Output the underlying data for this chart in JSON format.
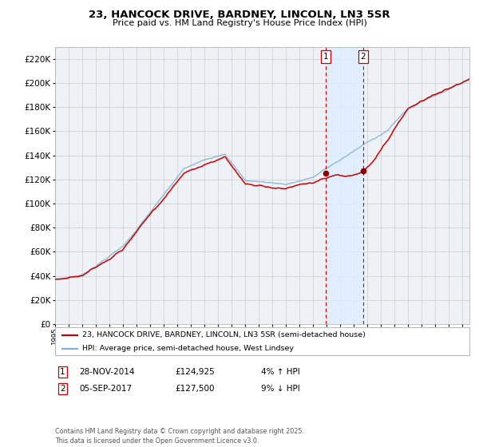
{
  "title": "23, HANCOCK DRIVE, BARDNEY, LINCOLN, LN3 5SR",
  "subtitle": "Price paid vs. HM Land Registry's House Price Index (HPI)",
  "ylim": [
    0,
    230000
  ],
  "yticks": [
    0,
    20000,
    40000,
    60000,
    80000,
    100000,
    120000,
    140000,
    160000,
    180000,
    200000,
    220000
  ],
  "sale1_date": 2014.91,
  "sale1_price": 124925,
  "sale2_date": 2017.68,
  "sale2_price": 127500,
  "hpi_color": "#7bafd4",
  "price_color": "#cc0000",
  "marker_color": "#8b0000",
  "vline_color": "#cc0000",
  "shade_color": "#ddeeff",
  "grid_color": "#cccccc",
  "bg_color": "#eef2f7",
  "background_color": "#ffffff",
  "legend1": "23, HANCOCK DRIVE, BARDNEY, LINCOLN, LN3 5SR (semi-detached house)",
  "legend2": "HPI: Average price, semi-detached house, West Lindsey",
  "footnote": "Contains HM Land Registry data © Crown copyright and database right 2025.\nThis data is licensed under the Open Government Licence v3.0.",
  "xlim_start": 1995.0,
  "xlim_end": 2025.5
}
